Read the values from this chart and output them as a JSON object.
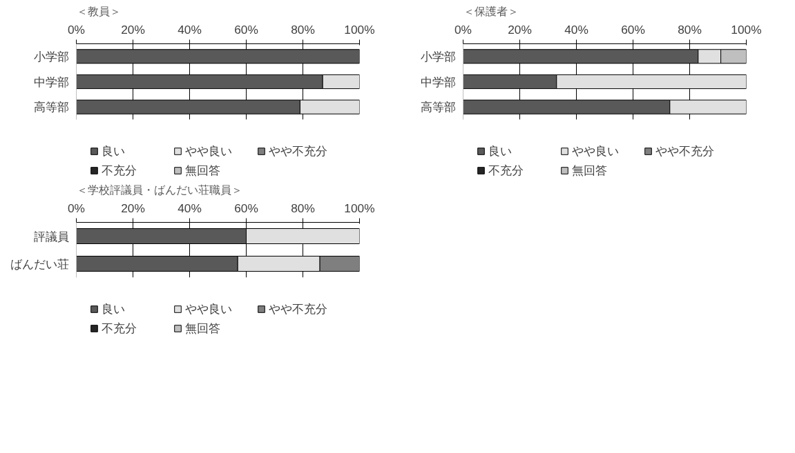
{
  "chart_data": [
    {
      "type": "bar",
      "title": "＜教員＞",
      "orientation": "horizontal",
      "stacked": true,
      "categories": [
        "小学部",
        "中学部",
        "高等部"
      ],
      "xlim": [
        0,
        100
      ],
      "xticks": [
        {
          "value": 0,
          "label": "0%"
        },
        {
          "value": 20,
          "label": "20%"
        },
        {
          "value": 40,
          "label": "40%"
        },
        {
          "value": 60,
          "label": "60%"
        },
        {
          "value": 80,
          "label": "80%"
        },
        {
          "value": 100,
          "label": "100%"
        }
      ],
      "grid": "x",
      "legend": "bottom",
      "series": [
        {
          "name": "良い",
          "color": "#595959",
          "values": [
            100,
            87,
            79
          ]
        },
        {
          "name": "やや良い",
          "color": "#e0e0e0",
          "values": [
            0,
            13,
            21
          ]
        },
        {
          "name": "やや不充分",
          "color": "#7f7f7f",
          "values": [
            0,
            0,
            0
          ]
        },
        {
          "name": "不充分",
          "color": "#262626",
          "values": [
            0,
            0,
            0
          ]
        },
        {
          "name": "無回答",
          "color": "#bfbfbf",
          "values": [
            0,
            0,
            0
          ]
        }
      ]
    },
    {
      "type": "bar",
      "title": "＜保護者＞",
      "orientation": "horizontal",
      "stacked": true,
      "categories": [
        "小学部",
        "中学部",
        "高等部"
      ],
      "xlim": [
        0,
        100
      ],
      "xticks": [
        {
          "value": 0,
          "label": "0%"
        },
        {
          "value": 20,
          "label": "20%"
        },
        {
          "value": 40,
          "label": "40%"
        },
        {
          "value": 60,
          "label": "60%"
        },
        {
          "value": 80,
          "label": "80%"
        },
        {
          "value": 100,
          "label": "100%"
        }
      ],
      "grid": "x",
      "legend": "bottom",
      "series": [
        {
          "name": "良い",
          "color": "#595959",
          "values": [
            83,
            33,
            73
          ]
        },
        {
          "name": "やや良い",
          "color": "#e0e0e0",
          "values": [
            8,
            67,
            27
          ]
        },
        {
          "name": "やや不充分",
          "color": "#7f7f7f",
          "values": [
            0,
            0,
            0
          ]
        },
        {
          "name": "不充分",
          "color": "#262626",
          "values": [
            0,
            0,
            0
          ]
        },
        {
          "name": "無回答",
          "color": "#bfbfbf",
          "values": [
            9,
            0,
            0
          ]
        }
      ]
    },
    {
      "type": "bar",
      "title": "＜学校評議員・ばんだい荘職員＞",
      "orientation": "horizontal",
      "stacked": true,
      "categories": [
        "評議員",
        "ばんだい荘"
      ],
      "xlim": [
        0,
        100
      ],
      "xticks": [
        {
          "value": 0,
          "label": "0%"
        },
        {
          "value": 20,
          "label": "20%"
        },
        {
          "value": 40,
          "label": "40%"
        },
        {
          "value": 60,
          "label": "60%"
        },
        {
          "value": 80,
          "label": "80%"
        },
        {
          "value": 100,
          "label": "100%"
        }
      ],
      "grid": "x",
      "legend": "bottom",
      "series": [
        {
          "name": "良い",
          "color": "#595959",
          "values": [
            60,
            57
          ]
        },
        {
          "name": "やや良い",
          "color": "#e0e0e0",
          "values": [
            40,
            29
          ]
        },
        {
          "name": "やや不充分",
          "color": "#7f7f7f",
          "values": [
            0,
            14
          ]
        },
        {
          "name": "不充分",
          "color": "#262626",
          "values": [
            0,
            0
          ]
        },
        {
          "name": "無回答",
          "color": "#bfbfbf",
          "values": [
            0,
            0
          ]
        }
      ]
    }
  ]
}
